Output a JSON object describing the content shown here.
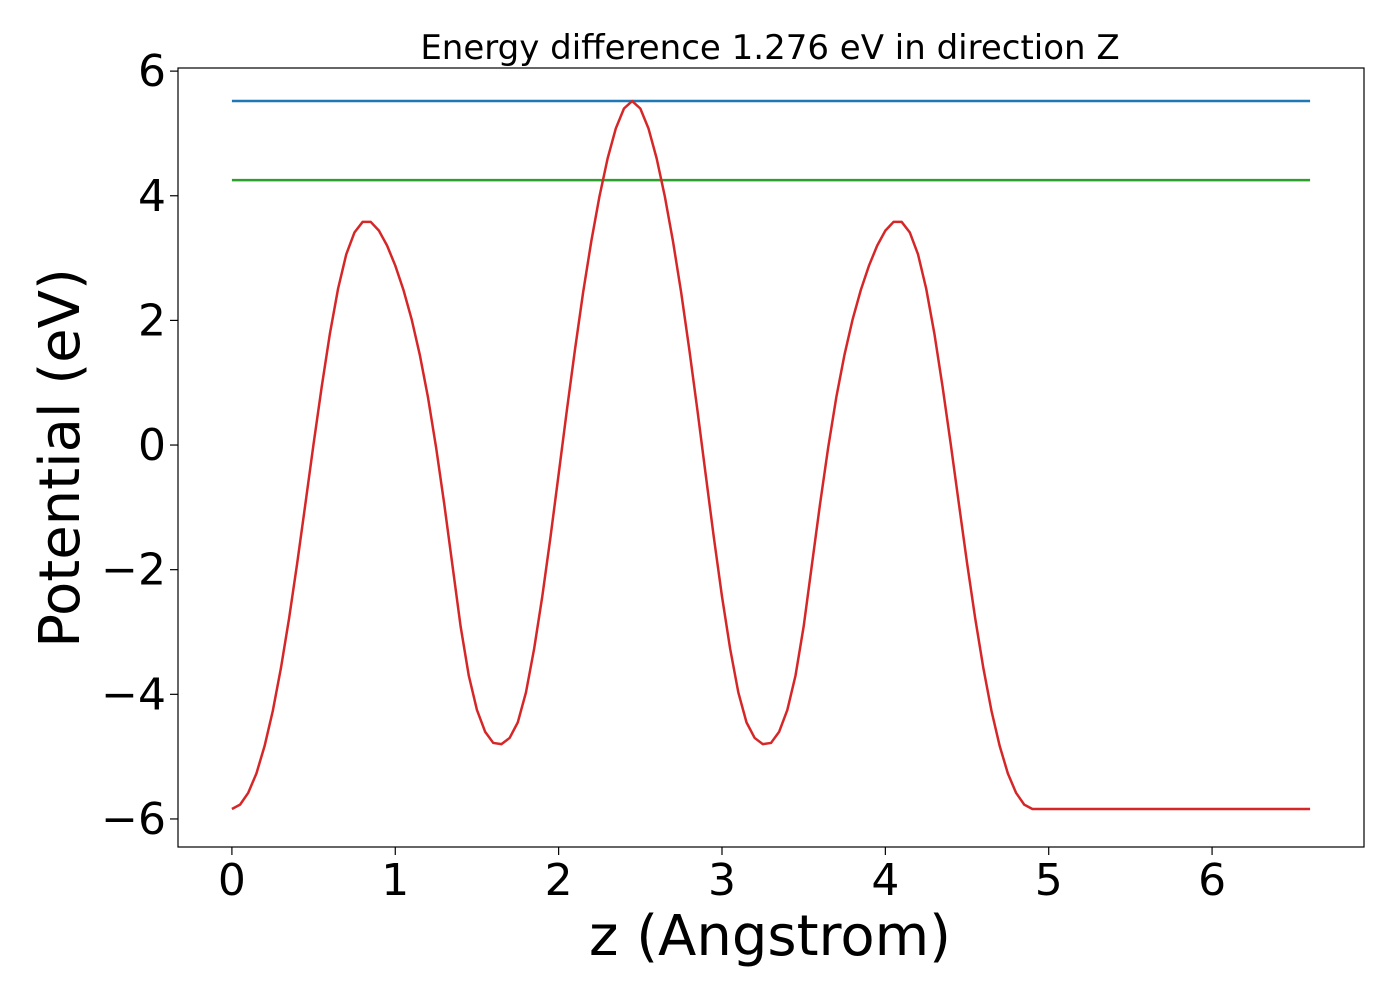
{
  "chart_data": {
    "type": "line",
    "title": "Energy difference 1.276 eV in direction Z",
    "xlabel": "z (Angstrom)",
    "ylabel": "Potential (eV)",
    "xlim": [
      -0.33,
      6.93
    ],
    "ylim": [
      -6.45,
      6.05
    ],
    "x_ticks": [
      0,
      1,
      2,
      3,
      4,
      5,
      6
    ],
    "x_tick_labels": [
      "0",
      "1",
      "2",
      "3",
      "4",
      "5",
      "6"
    ],
    "y_ticks": [
      -6,
      -4,
      -2,
      0,
      2,
      4,
      6
    ],
    "y_tick_labels": [
      "−6",
      "−4",
      "−2",
      "0",
      "2",
      "4",
      "6"
    ],
    "grid": false,
    "series": [
      {
        "color": "#1f77b4",
        "x": [
          0,
          6.6
        ],
        "y": [
          5.52,
          5.52
        ]
      },
      {
        "color": "#2ca02c",
        "x": [
          0,
          6.6
        ],
        "y": [
          4.25,
          4.25
        ]
      },
      {
        "color": "#d62728",
        "x": [
          0.0,
          0.05,
          0.1,
          0.15,
          0.2,
          0.25,
          0.3,
          0.35,
          0.4,
          0.45,
          0.5,
          0.55,
          0.6,
          0.65,
          0.7,
          0.75,
          0.8,
          0.85,
          0.9,
          0.95,
          1.0,
          1.05,
          1.1,
          1.15,
          1.2,
          1.25,
          1.3,
          1.35,
          1.4,
          1.45,
          1.5,
          1.55,
          1.6,
          1.65,
          1.7,
          1.75,
          1.8,
          1.85,
          1.9,
          1.95,
          2.0,
          2.05,
          2.1,
          2.15,
          2.2,
          2.25,
          2.3,
          2.35,
          2.4,
          2.45,
          2.5,
          2.55,
          2.6,
          2.65,
          2.7,
          2.75,
          2.8,
          2.85,
          2.9,
          2.95,
          3.0,
          3.05,
          3.1,
          3.15,
          3.2,
          3.25,
          3.3,
          3.35,
          3.4,
          3.45,
          3.5,
          3.55,
          3.6,
          3.65,
          3.7,
          3.75,
          3.8,
          3.85,
          3.9,
          3.95,
          4.0,
          4.05,
          4.1,
          4.15,
          4.2,
          4.25,
          4.3,
          4.35,
          4.4,
          4.45,
          4.5,
          4.55,
          4.6,
          4.65,
          4.7,
          4.75,
          4.8,
          4.85,
          4.9,
          4.95,
          5.0,
          5.05,
          5.1,
          5.15,
          5.2,
          5.25,
          5.3,
          5.35,
          5.4,
          5.45,
          5.5,
          5.55,
          5.6,
          5.65,
          5.7,
          5.75,
          5.8,
          5.85,
          5.9,
          5.95,
          6.0,
          6.05,
          6.1,
          6.15,
          6.2,
          6.25,
          6.3,
          6.35,
          6.4,
          6.45,
          6.5,
          6.55,
          6.6
        ],
        "y": [
          -5.84,
          -5.77,
          -5.58,
          -5.27,
          -4.83,
          -4.27,
          -3.58,
          -2.78,
          -1.89,
          -0.94,
          0.02,
          0.94,
          1.79,
          2.51,
          3.06,
          3.41,
          3.58,
          3.58,
          3.44,
          3.2,
          2.88,
          2.49,
          2.02,
          1.45,
          0.77,
          -0.04,
          -0.95,
          -1.93,
          -2.91,
          -3.7,
          -4.25,
          -4.6,
          -4.78,
          -4.8,
          -4.7,
          -4.45,
          -3.97,
          -3.27,
          -2.43,
          -1.48,
          -0.47,
          0.55,
          1.53,
          2.45,
          3.27,
          3.99,
          4.6,
          5.08,
          5.4,
          5.52,
          5.4,
          5.08,
          4.6,
          3.99,
          3.27,
          2.45,
          1.53,
          0.55,
          -0.47,
          -1.48,
          -2.43,
          -3.27,
          -3.97,
          -4.45,
          -4.7,
          -4.8,
          -4.78,
          -4.6,
          -4.25,
          -3.7,
          -2.91,
          -1.93,
          -0.95,
          -0.04,
          0.77,
          1.45,
          2.02,
          2.49,
          2.88,
          3.2,
          3.44,
          3.58,
          3.58,
          3.41,
          3.06,
          2.51,
          1.79,
          0.94,
          0.02,
          -0.94,
          -1.89,
          -2.78,
          -3.58,
          -4.27,
          -4.83,
          -5.27,
          -5.58,
          -5.77,
          -5.84,
          -5.84,
          -5.84,
          -5.84,
          -5.84,
          -5.84,
          -5.84,
          -5.84,
          -5.84,
          -5.84,
          -5.84,
          -5.84,
          -5.84,
          -5.84,
          -5.84,
          -5.84,
          -5.84,
          -5.84,
          -5.84,
          -5.84,
          -5.84,
          -5.84,
          -5.84,
          -5.84,
          -5.84,
          -5.84,
          -5.84,
          -5.84,
          -5.84,
          -5.84,
          -5.84,
          -5.84,
          -5.84,
          -5.84,
          -5.84
        ]
      }
    ]
  }
}
